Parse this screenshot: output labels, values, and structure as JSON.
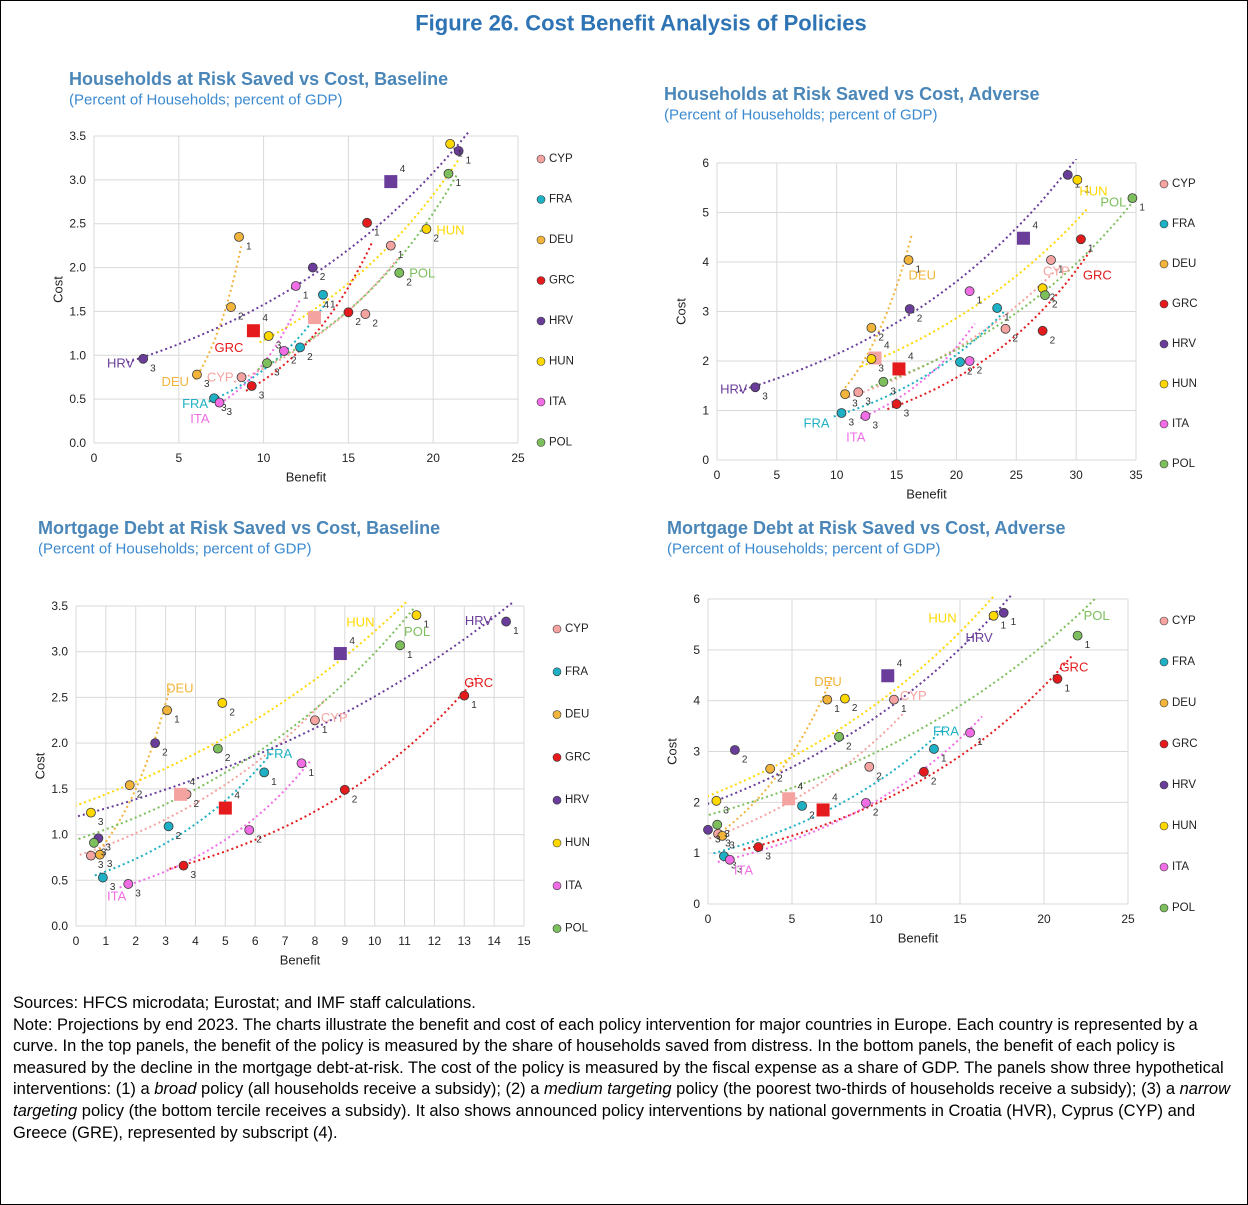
{
  "figure_title": "Figure 26. Cost Benefit Analysis of Policies",
  "chart_data": [
    {
      "type": "scatter",
      "title": "Households at Risk Saved vs Cost, Baseline",
      "subtitle": "(Percent of Households; percent of GDP)",
      "x_label": "Benefit",
      "y_label": "Cost",
      "xlim": [
        0,
        25
      ],
      "ylim": [
        0,
        3.5
      ],
      "xticks": [
        0,
        5,
        10,
        15,
        20,
        25
      ],
      "yticks": [
        {
          "value": 0,
          "label": "0.0"
        },
        0.5,
        {
          "value": 1,
          "label": "1.0"
        },
        1.5,
        {
          "value": 2,
          "label": "2.0"
        },
        2.5,
        {
          "value": 3,
          "label": "3.0"
        },
        3.5
      ],
      "grid": true,
      "legend": "right",
      "trendline": "exponential",
      "series": [
        {
          "name": "CYP",
          "color": "#f4a3a0",
          "x": [
            17.5,
            16.0,
            8.7,
            13.0
          ],
          "values": [
            2.25,
            1.47,
            0.75,
            1.43
          ],
          "point_labels": [
            "1",
            "2",
            "3",
            "4"
          ],
          "markers": [
            "circle",
            "circle",
            "circle",
            "square"
          ]
        },
        {
          "name": "FRA",
          "color": "#1eb0c4",
          "x": [
            13.5,
            12.15,
            7.08
          ],
          "values": [
            1.69,
            1.09,
            0.51
          ],
          "point_labels": [
            "1",
            "2",
            "3"
          ],
          "markers": [
            "circle",
            "circle",
            "circle"
          ]
        },
        {
          "name": "DEU",
          "color": "#f2b43a",
          "x": [
            8.55,
            8.08,
            6.07
          ],
          "values": [
            2.35,
            1.55,
            0.78
          ],
          "point_labels": [
            "1",
            "2",
            "3"
          ],
          "markers": [
            "circle",
            "circle",
            "circle"
          ]
        },
        {
          "name": "GRC",
          "color": "#e41a1c",
          "x": [
            16.1,
            15.0,
            9.3,
            9.4
          ],
          "values": [
            2.51,
            1.49,
            0.65,
            1.28
          ],
          "point_labels": [
            "1",
            "2",
            "3",
            "4"
          ],
          "markers": [
            "circle",
            "circle",
            "circle",
            "square"
          ]
        },
        {
          "name": "HRV",
          "color": "#6a3d9a",
          "x": [
            21.5,
            12.9,
            2.9,
            17.5
          ],
          "values": [
            3.33,
            2.0,
            0.96,
            2.98
          ],
          "point_labels": [
            "1",
            "2",
            "3",
            "4"
          ],
          "markers": [
            "circle",
            "circle",
            "circle",
            "square"
          ]
        },
        {
          "name": "HUN",
          "color": "#ffd800",
          "x": [
            21.0,
            19.6,
            10.3
          ],
          "values": [
            3.41,
            2.44,
            1.22
          ],
          "point_labels": [
            "1",
            "2",
            "3"
          ],
          "markers": [
            "circle",
            "circle",
            "circle"
          ]
        },
        {
          "name": "ITA",
          "color": "#f06de6",
          "x": [
            11.9,
            11.2,
            7.4
          ],
          "values": [
            1.79,
            1.05,
            0.46
          ],
          "point_labels": [
            "1",
            "2",
            "3"
          ],
          "markers": [
            "circle",
            "circle",
            "circle"
          ]
        },
        {
          "name": "POL",
          "color": "#7cbf5c",
          "x": [
            20.9,
            18.0,
            10.2
          ],
          "values": [
            3.07,
            1.94,
            0.91
          ],
          "point_labels": [
            "1",
            "2",
            "3"
          ],
          "markers": [
            "circle",
            "circle",
            "circle"
          ]
        }
      ]
    },
    {
      "type": "scatter",
      "title": "Households at Risk Saved vs Cost, Adverse",
      "subtitle": "(Percent of Households; percent of GDP)",
      "x_label": "Benefit",
      "y_label": "Cost",
      "xlim": [
        0,
        35
      ],
      "ylim": [
        0,
        6
      ],
      "xticks": [
        0,
        5,
        10,
        15,
        20,
        25,
        30,
        35
      ],
      "yticks": [
        0,
        1,
        2,
        3,
        4,
        5,
        6
      ],
      "grid": true,
      "legend": "right",
      "trendline": "exponential",
      "series": [
        {
          "name": "CYP",
          "color": "#f4a3a0",
          "x": [
            27.9,
            24.1,
            11.8,
            13.2
          ],
          "values": [
            4.04,
            2.65,
            1.37,
            2.06
          ],
          "point_labels": [
            "1",
            "2",
            "3",
            "4"
          ],
          "markers": [
            "circle",
            "circle",
            "circle",
            "square"
          ]
        },
        {
          "name": "FRA",
          "color": "#1eb0c4",
          "x": [
            23.4,
            20.3,
            10.4
          ],
          "values": [
            3.07,
            1.98,
            0.95
          ],
          "point_labels": [
            "1",
            "2",
            "3"
          ],
          "markers": [
            "circle",
            "circle",
            "circle"
          ]
        },
        {
          "name": "DEU",
          "color": "#f2b43a",
          "x": [
            16.0,
            12.9,
            10.7
          ],
          "values": [
            4.04,
            2.67,
            1.33
          ],
          "point_labels": [
            "1",
            "2",
            "3"
          ],
          "markers": [
            "circle",
            "circle",
            "circle"
          ]
        },
        {
          "name": "GRC",
          "color": "#e41a1c",
          "x": [
            30.4,
            27.2,
            15.0,
            15.2
          ],
          "values": [
            4.46,
            2.61,
            1.13,
            1.84
          ],
          "point_labels": [
            "1",
            "2",
            "3",
            "4"
          ],
          "markers": [
            "circle",
            "circle",
            "circle",
            "square"
          ]
        },
        {
          "name": "HRV",
          "color": "#6a3d9a",
          "x": [
            29.3,
            16.1,
            3.2,
            25.6
          ],
          "values": [
            5.76,
            3.05,
            1.47,
            4.48
          ],
          "point_labels": [
            "1",
            "2",
            "3",
            "4"
          ],
          "markers": [
            "circle",
            "circle",
            "circle",
            "square"
          ]
        },
        {
          "name": "HUN",
          "color": "#ffd800",
          "x": [
            30.1,
            27.2,
            12.9
          ],
          "values": [
            5.66,
            3.47,
            2.04
          ],
          "point_labels": [
            "1",
            "2",
            "3"
          ],
          "markers": [
            "circle",
            "circle",
            "circle"
          ]
        },
        {
          "name": "ITA",
          "color": "#f06de6",
          "x": [
            21.1,
            21.1,
            12.4
          ],
          "values": [
            3.41,
            2.0,
            0.89
          ],
          "point_labels": [
            "1",
            "2",
            "3"
          ],
          "markers": [
            "circle",
            "circle",
            "circle"
          ]
        },
        {
          "name": "POL",
          "color": "#7cbf5c",
          "x": [
            34.7,
            27.4,
            13.9
          ],
          "values": [
            5.29,
            3.33,
            1.58
          ],
          "point_labels": [
            "1",
            "2",
            "3"
          ],
          "markers": [
            "circle",
            "circle",
            "circle"
          ]
        }
      ]
    },
    {
      "type": "scatter",
      "title": "Mortgage Debt at Risk Saved vs Cost, Baseline",
      "subtitle": "(Percent of Households; percent of GDP)",
      "x_label": "Benefit",
      "y_label": "Cost",
      "xlim": [
        0,
        15
      ],
      "ylim": [
        0,
        3.5
      ],
      "xticks": [
        0,
        1,
        2,
        3,
        4,
        5,
        6,
        7,
        8,
        9,
        10,
        11,
        12,
        13,
        14,
        15
      ],
      "yticks": [
        {
          "value": 0,
          "label": "0.0"
        },
        0.5,
        {
          "value": 1,
          "label": "1.0"
        },
        1.5,
        {
          "value": 2,
          "label": "2.0"
        },
        2.5,
        {
          "value": 3,
          "label": "3.0"
        },
        3.5
      ],
      "grid": true,
      "legend": "right",
      "trendline": "exponential",
      "series": [
        {
          "name": "CYP",
          "color": "#f4a3a0",
          "x": [
            8.0,
            3.7,
            0.5,
            3.5
          ],
          "values": [
            2.25,
            1.44,
            0.77,
            1.44
          ],
          "point_labels": [
            "1",
            "2",
            "3",
            "4"
          ],
          "markers": [
            "circle",
            "circle",
            "circle",
            "square"
          ]
        },
        {
          "name": "FRA",
          "color": "#1eb0c4",
          "x": [
            6.3,
            3.1,
            0.9
          ],
          "values": [
            1.68,
            1.09,
            0.53
          ],
          "point_labels": [
            "1",
            "2",
            "3"
          ],
          "markers": [
            "circle",
            "circle",
            "circle"
          ]
        },
        {
          "name": "DEU",
          "color": "#f2b43a",
          "x": [
            3.05,
            1.8,
            0.8
          ],
          "values": [
            2.36,
            1.54,
            0.78
          ],
          "point_labels": [
            "1",
            "2",
            "3"
          ],
          "markers": [
            "circle",
            "circle",
            "circle"
          ]
        },
        {
          "name": "GRC",
          "color": "#e41a1c",
          "x": [
            13.0,
            9.0,
            3.6,
            5.0
          ],
          "values": [
            2.52,
            1.49,
            0.66,
            1.29
          ],
          "point_labels": [
            "1",
            "2",
            "3",
            "4"
          ],
          "markers": [
            "circle",
            "circle",
            "circle",
            "square"
          ]
        },
        {
          "name": "HRV",
          "color": "#6a3d9a",
          "x": [
            14.4,
            2.65,
            0.75,
            8.85
          ],
          "values": [
            3.33,
            2.0,
            0.96,
            2.98
          ],
          "point_labels": [
            "1",
            "2",
            "3",
            "4"
          ],
          "markers": [
            "circle",
            "circle",
            "circle",
            "square"
          ]
        },
        {
          "name": "HUN",
          "color": "#ffd800",
          "x": [
            11.4,
            4.9,
            0.5
          ],
          "values": [
            3.4,
            2.44,
            1.24
          ],
          "point_labels": [
            "1",
            "2",
            "3"
          ],
          "markers": [
            "circle",
            "circle",
            "circle"
          ]
        },
        {
          "name": "ITA",
          "color": "#f06de6",
          "x": [
            7.55,
            5.8,
            1.75
          ],
          "values": [
            1.78,
            1.05,
            0.46
          ],
          "point_labels": [
            "1",
            "2",
            "3"
          ],
          "markers": [
            "circle",
            "circle",
            "circle"
          ]
        },
        {
          "name": "POL",
          "color": "#7cbf5c",
          "x": [
            10.85,
            4.75,
            0.6
          ],
          "values": [
            3.07,
            1.94,
            0.91
          ],
          "point_labels": [
            "1",
            "2",
            "3"
          ],
          "markers": [
            "circle",
            "circle",
            "circle"
          ]
        }
      ]
    },
    {
      "type": "scatter",
      "title": "Mortgage Debt at Risk Saved vs Cost, Adverse",
      "subtitle": "(Percent of Households; percent of GDP)",
      "x_label": "Benefit",
      "y_label": "Cost",
      "xlim": [
        0,
        25
      ],
      "ylim": [
        0,
        6
      ],
      "xticks": [
        0,
        5,
        10,
        15,
        20,
        25
      ],
      "yticks": [
        0,
        1,
        2,
        3,
        4,
        5,
        6
      ],
      "grid": true,
      "legend": "right",
      "trendline": "exponential",
      "series": [
        {
          "name": "CYP",
          "color": "#f4a3a0",
          "x": [
            11.07,
            9.6,
            0.6,
            4.8
          ],
          "values": [
            4.02,
            2.7,
            1.38,
            2.07
          ],
          "point_labels": [
            "1",
            "2",
            "3",
            "4"
          ],
          "markers": [
            "circle",
            "circle",
            "circle",
            "square"
          ]
        },
        {
          "name": "FRA",
          "color": "#1eb0c4",
          "x": [
            13.45,
            5.6,
            0.95
          ],
          "values": [
            3.05,
            1.93,
            0.94
          ],
          "point_labels": [
            "1",
            "2",
            "3"
          ],
          "markers": [
            "circle",
            "circle",
            "circle"
          ]
        },
        {
          "name": "DEU",
          "color": "#f2b43a",
          "x": [
            7.1,
            3.7,
            0.85
          ],
          "values": [
            4.02,
            2.66,
            1.34
          ],
          "point_labels": [
            "1",
            "2",
            "3"
          ],
          "markers": [
            "circle",
            "circle",
            "circle"
          ]
        },
        {
          "name": "GRC",
          "color": "#e41a1c",
          "x": [
            20.8,
            12.85,
            3.0,
            6.85
          ],
          "values": [
            4.43,
            2.6,
            1.12,
            1.85
          ],
          "point_labels": [
            "1",
            "2",
            "3",
            "4"
          ],
          "markers": [
            "circle",
            "circle",
            "circle",
            "square"
          ]
        },
        {
          "name": "HRV",
          "color": "#6a3d9a",
          "x": [
            17.6,
            1.6,
            0,
            10.7
          ],
          "values": [
            5.73,
            3.03,
            1.46,
            4.49
          ],
          "point_labels": [
            "1",
            "2",
            "3",
            "4"
          ],
          "markers": [
            "circle",
            "circle",
            "circle",
            "square"
          ]
        },
        {
          "name": "HUN",
          "color": "#ffd800",
          "x": [
            17.0,
            8.15,
            0.5
          ],
          "values": [
            5.67,
            4.04,
            2.03
          ],
          "point_labels": [
            "1",
            "2",
            "3"
          ],
          "markers": [
            "circle",
            "circle",
            "circle"
          ]
        },
        {
          "name": "ITA",
          "color": "#f06de6",
          "x": [
            15.6,
            9.4,
            1.3
          ],
          "values": [
            3.37,
            1.99,
            0.87
          ],
          "point_labels": [
            "1",
            "2",
            "3"
          ],
          "markers": [
            "circle",
            "circle",
            "circle"
          ]
        },
        {
          "name": "POL",
          "color": "#7cbf5c",
          "x": [
            22.0,
            7.8,
            0.55
          ],
          "values": [
            5.28,
            3.29,
            1.56
          ],
          "point_labels": [
            "1",
            "2",
            "3"
          ],
          "markers": [
            "circle",
            "circle",
            "circle"
          ]
        }
      ]
    }
  ],
  "sources": "Sources: HFCS microdata; Eurostat; and IMF staff calculations.",
  "note": [
    "Note: Projections by end 2023. The charts illustrate the benefit and cost of each policy intervention for major countries in Europe. Each country is represented by a curve. In the top panels, the benefit of the policy is measured by the share of households saved from distress. In the bottom panels, the benefit of each policy is measured by the decline in the mortgage debt-at-risk. The cost of the policy is measured by the fiscal expense as a share of GDP. The panels show three hypothetical interventions: (1) a ",
    "broad",
    " policy (all households receive a subsidy); (2) a ",
    "medium targeting",
    " policy (the poorest two-thirds of households receive a subsidy); (3) a ",
    "narrow targeting",
    " policy (the bottom tercile receives a subsidy). It also shows announced policy interventions by national governments in Croatia (HVR), Cyprus (CYP) and Greece (GRE), represented by subscript (4)."
  ]
}
